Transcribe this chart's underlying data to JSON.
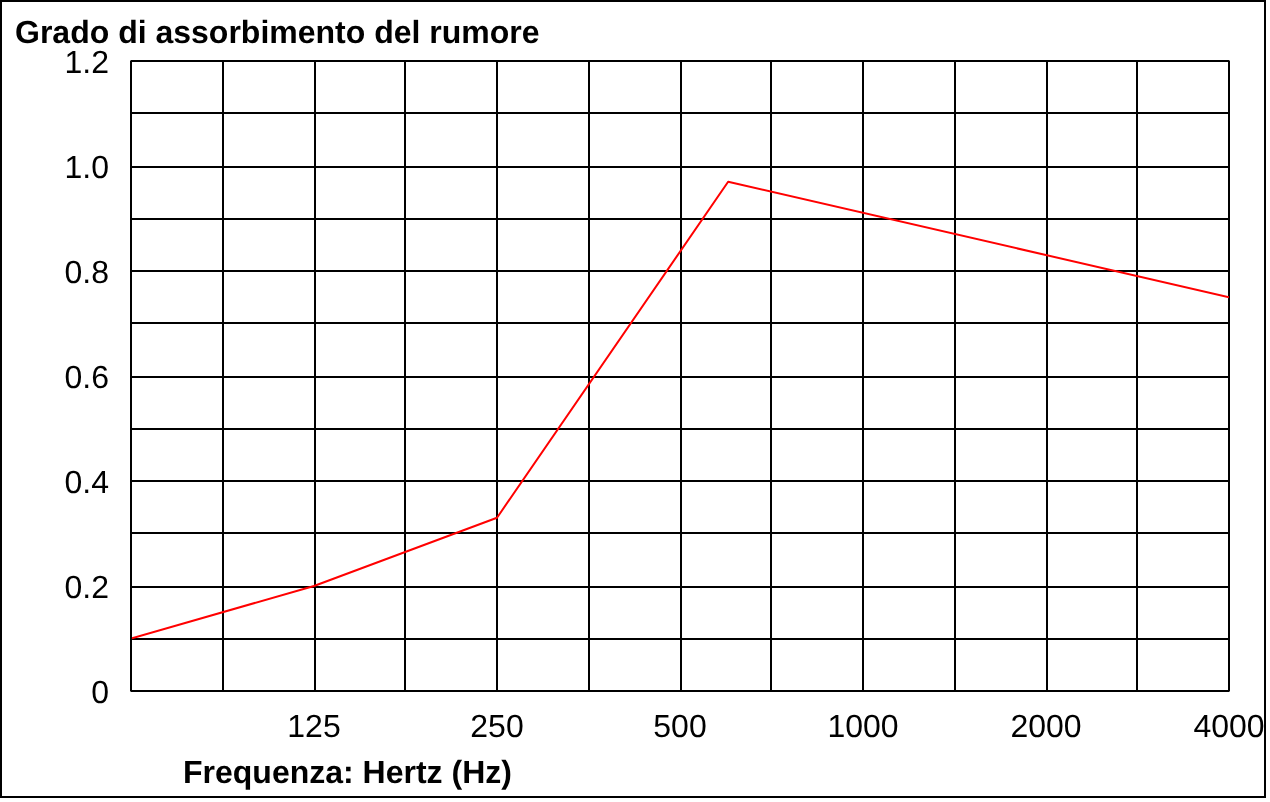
{
  "chart_data": {
    "type": "line",
    "title": "Grado di assorbimento del rumore",
    "xlabel": "Frequenza: Hertz (Hz)",
    "x": [
      62.5,
      125,
      250,
      600,
      4000
    ],
    "series": [
      {
        "color": "#ff0000",
        "values": [
          0.1,
          0.2,
          0.33,
          0.97,
          0.75
        ]
      }
    ],
    "log": "x",
    "xlim": [
      62.5,
      4000
    ],
    "xticks": [
      {
        "value": 88.39,
        "label": null
      },
      125,
      {
        "value": 176.78,
        "label": null
      },
      250,
      {
        "value": 353.55,
        "label": null
      },
      500,
      {
        "value": 707.11,
        "label": null
      },
      1000,
      {
        "value": 1414.21,
        "label": null
      },
      2000,
      {
        "value": 2828.43,
        "label": null
      },
      4000
    ],
    "ylim": [
      0,
      1.2
    ],
    "yticks": [
      0,
      {
        "value": 0.1,
        "label": null
      },
      0.2,
      {
        "value": 0.3,
        "label": null
      },
      0.4,
      {
        "value": 0.5,
        "label": null
      },
      0.6,
      {
        "value": 0.7,
        "label": null
      },
      0.8,
      {
        "value": 0.9,
        "label": null
      },
      {
        "value": 1,
        "label": "1.0"
      },
      {
        "value": 1.1,
        "label": null
      },
      1.2
    ],
    "grid": true,
    "marker": "none",
    "line_style": "solid"
  }
}
